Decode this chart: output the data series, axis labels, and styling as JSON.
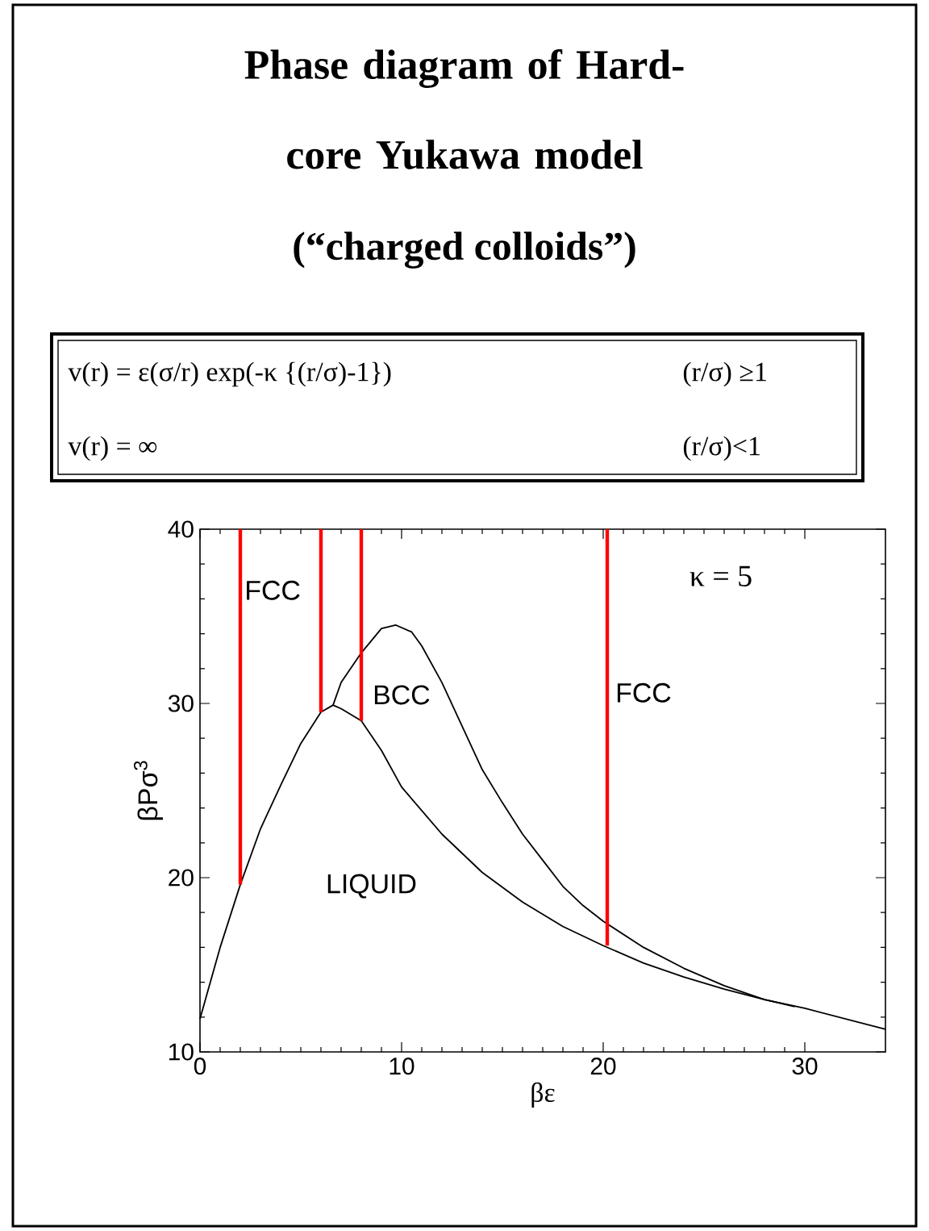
{
  "chart_data": {
    "type": "line",
    "title": "Phase diagram of Hard-core Yukawa model",
    "subtitle": "(“charged colloids”)",
    "xlabel": "βε",
    "ylabel": "βPσ$^{3}$",
    "xlim": [
      0,
      34
    ],
    "ylim": [
      10,
      40
    ],
    "xticks": [
      0,
      10,
      20,
      30
    ],
    "yticks": [
      10,
      20,
      30,
      40
    ],
    "grid": false,
    "marker": "none",
    "line_style": "solid",
    "series": [
      {
        "color": "#000000",
        "x": [
          0,
          1,
          2,
          3,
          4,
          5,
          6,
          6.6,
          7,
          8,
          9,
          10,
          12,
          14,
          16,
          18,
          20,
          22,
          24,
          26,
          28,
          30,
          32,
          34
        ],
        "values": [
          11.9,
          16,
          19.6,
          22.8,
          25.3,
          27.7,
          29.5,
          29.9,
          29.7,
          29.0,
          27.3,
          25.2,
          22.5,
          20.3,
          18.6,
          17.2,
          16.1,
          15.1,
          14.3,
          13.6,
          13.0,
          12.5,
          11.9,
          11.3
        ]
      },
      {
        "color": "#000000",
        "x": [
          6.6,
          7,
          8,
          9,
          9.7,
          10.5,
          11,
          12,
          13,
          14,
          15,
          16,
          17,
          18,
          19,
          20,
          22,
          24,
          26,
          28,
          29.5
        ],
        "values": [
          29.9,
          31.2,
          32.9,
          34.3,
          34.5,
          34.1,
          33.3,
          31.2,
          28.7,
          26.2,
          24.3,
          22.5,
          21.0,
          19.5,
          18.4,
          17.5,
          16.0,
          14.8,
          13.8,
          13.0,
          12.6
        ]
      },
      {
        "color": "#ff0000",
        "x": [
          2,
          2
        ],
        "values": [
          19.6,
          40
        ]
      },
      {
        "color": "#ff0000",
        "x": [
          6,
          6
        ],
        "values": [
          29.5,
          40
        ]
      },
      {
        "color": "#ff0000",
        "x": [
          8,
          8
        ],
        "values": [
          29.0,
          40
        ]
      },
      {
        "color": "#ff0000",
        "x": [
          20.2,
          20.2
        ],
        "values": [
          16.1,
          40
        ]
      }
    ],
    "annotations": [
      "v(r) = ε(σ/r) exp(-κ {(r/σ)-1})",
      "(r/σ) ≥1",
      "v(r) = ∞",
      "(r/σ)<1",
      "κ = 5",
      "FCC",
      "BCC",
      "FCC",
      "LIQUID"
    ]
  }
}
